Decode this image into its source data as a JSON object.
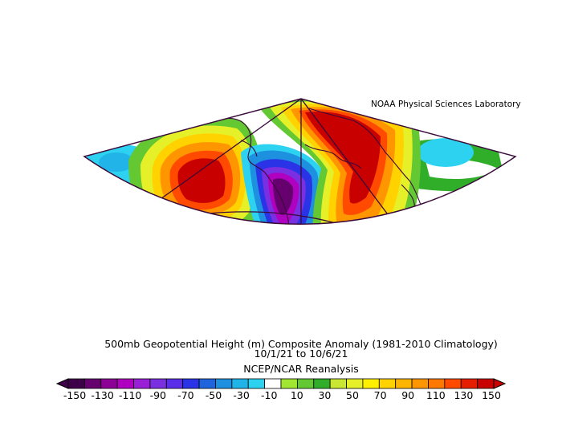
{
  "header": {
    "lab": "NOAA Physical Sciences Laboratory"
  },
  "titles": {
    "line1": "500mb Geopotential Height (m) Composite Anomaly (1981-2010 Climatology)",
    "line2": "10/1/21  to 10/6/21",
    "line3": "NCEP/NCAR Reanalysis"
  },
  "colorbar": {
    "tick_labels": [
      "-150",
      "-130",
      "-110",
      "-90",
      "-70",
      "-50",
      "-30",
      "-10",
      "10",
      "30",
      "50",
      "70",
      "90",
      "110",
      "130",
      "150"
    ],
    "colors": [
      "#3d0048",
      "#66006e",
      "#8c0096",
      "#b000c0",
      "#9a20d8",
      "#7a30e0",
      "#5a2ee8",
      "#2a34e6",
      "#1f64dc",
      "#1e90e0",
      "#20b4e8",
      "#2cd2f0",
      "#ffffff",
      "#a0e632",
      "#64c832",
      "#30ae2a",
      "#c8e632",
      "#e6f028",
      "#fff000",
      "#ffd200",
      "#ffb400",
      "#ff9600",
      "#ff7800",
      "#ff4a00",
      "#e61e00",
      "#c80000"
    ]
  },
  "map": {
    "projection": "polar-lambert-sector",
    "features": [
      {
        "name": "positive-anomaly-north-pacific",
        "color": "#c80000"
      },
      {
        "name": "negative-anomaly-west-coast",
        "color": "#66006e"
      },
      {
        "name": "positive-anomaly-canada",
        "color": "#c80000"
      },
      {
        "name": "negative-anomaly-east-pacific",
        "color": "#1f64dc"
      }
    ]
  }
}
